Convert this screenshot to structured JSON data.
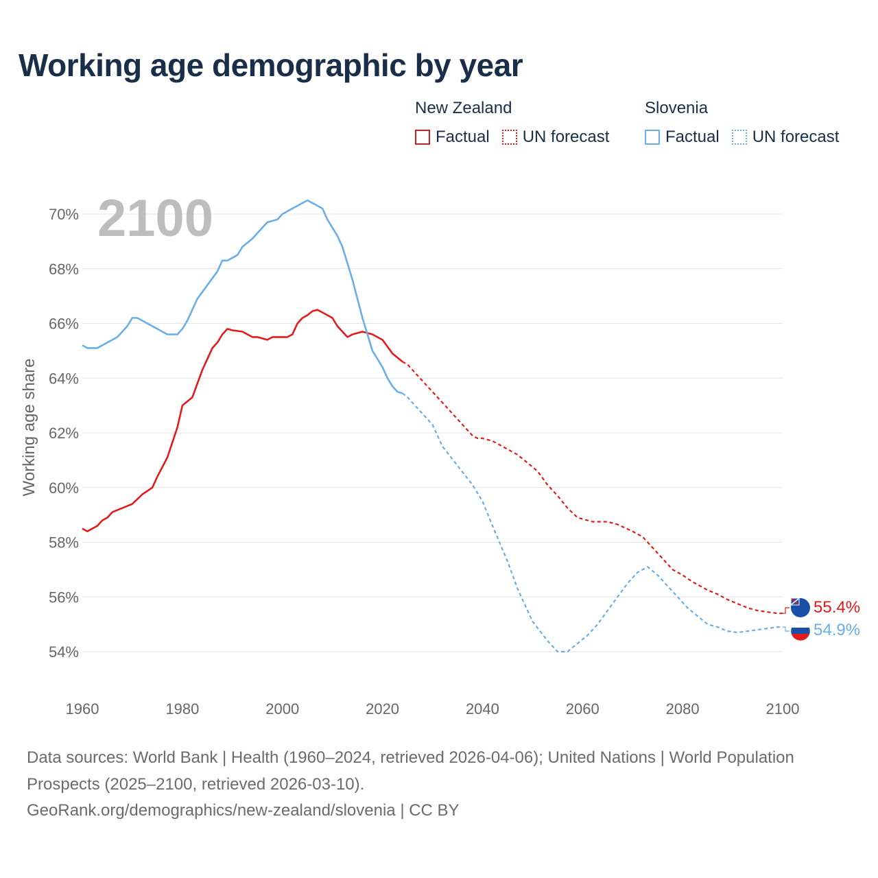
{
  "title": "Working age demographic by year",
  "year_display": "2100",
  "legend": {
    "groups": [
      {
        "country": "New Zealand",
        "factual_label": "Factual",
        "forecast_label": "UN forecast",
        "color": "#e31a1c"
      },
      {
        "country": "Slovenia",
        "factual_label": "Factual",
        "forecast_label": "UN forecast",
        "color": "#6aaee6"
      }
    ]
  },
  "footer": {
    "line1": "Data sources: World Bank | Health (1960–2024, retrieved 2026-04-06); United Nations | World Population Prospects (2025–2100, retrieved 2026-03-10).",
    "line2": "GeoRank.org/demographics/new-zealand/slovenia | CC BY"
  },
  "chart_data": {
    "type": "line",
    "title": "Working age demographic by year",
    "xlabel": "",
    "ylabel": "Working age share",
    "xlim": [
      1960,
      2100
    ],
    "ylim": [
      53,
      71
    ],
    "xticks": [
      1960,
      1980,
      2000,
      2020,
      2040,
      2060,
      2080,
      2100
    ],
    "xtick_labels": [
      "1960",
      "1980",
      "2000",
      "2020",
      "2040",
      "2060",
      "2080",
      "2100"
    ],
    "yticks": [
      54,
      56,
      58,
      60,
      62,
      64,
      66,
      68,
      70
    ],
    "ytick_labels": [
      "54%",
      "56%",
      "58%",
      "60%",
      "62%",
      "64%",
      "66%",
      "68%",
      "70%"
    ],
    "grid": true,
    "factual_end_year": 2024,
    "series": [
      {
        "name": "New Zealand",
        "color": "#e31a1c",
        "end_label": "55.4%",
        "x": [
          1960,
          1961,
          1962,
          1963,
          1964,
          1965,
          1966,
          1968,
          1970,
          1972,
          1974,
          1975,
          1977,
          1979,
          1980,
          1982,
          1984,
          1985,
          1986,
          1987,
          1988,
          1989,
          1990,
          1992,
          1994,
          1995,
          1997,
          1998,
          2000,
          2001,
          2002,
          2003,
          2004,
          2005,
          2006,
          2007,
          2008,
          2010,
          2011,
          2013,
          2014,
          2016,
          2017,
          2018,
          2020,
          2022,
          2024,
          2025,
          2027,
          2030,
          2032,
          2035,
          2038,
          2039,
          2040,
          2042,
          2043,
          2045,
          2047,
          2049,
          2051,
          2053,
          2055,
          2057,
          2059,
          2060,
          2062,
          2065,
          2067,
          2070,
          2072,
          2074,
          2076,
          2078,
          2080,
          2082,
          2085,
          2087,
          2089,
          2091,
          2093,
          2095,
          2097,
          2099,
          2100
        ],
        "values": [
          58.5,
          58.4,
          58.5,
          58.6,
          58.8,
          58.9,
          59.1,
          59.25,
          59.4,
          59.75,
          60.0,
          60.4,
          61.1,
          62.2,
          63.0,
          63.3,
          64.3,
          64.7,
          65.1,
          65.3,
          65.6,
          65.8,
          65.75,
          65.7,
          65.5,
          65.5,
          65.4,
          65.5,
          65.5,
          65.5,
          65.6,
          66.0,
          66.2,
          66.3,
          66.45,
          66.5,
          66.4,
          66.2,
          65.9,
          65.5,
          65.6,
          65.7,
          65.65,
          65.6,
          65.4,
          64.9,
          64.6,
          64.5,
          64.1,
          63.5,
          63.1,
          62.5,
          61.9,
          61.8,
          61.8,
          61.7,
          61.6,
          61.4,
          61.2,
          60.9,
          60.6,
          60.1,
          59.7,
          59.25,
          58.9,
          58.85,
          58.75,
          58.75,
          58.65,
          58.4,
          58.2,
          57.8,
          57.4,
          57.0,
          56.8,
          56.55,
          56.25,
          56.1,
          55.9,
          55.75,
          55.6,
          55.5,
          55.45,
          55.4,
          55.4
        ]
      },
      {
        "name": "Slovenia",
        "color": "#6aaee6",
        "end_label": "54.9%",
        "x": [
          1960,
          1961,
          1963,
          1965,
          1967,
          1969,
          1970,
          1971,
          1973,
          1975,
          1977,
          1979,
          1980,
          1981,
          1983,
          1985,
          1987,
          1988,
          1989,
          1990,
          1991,
          1992,
          1994,
          1996,
          1997,
          1999,
          2000,
          2002,
          2004,
          2005,
          2006,
          2007,
          2008,
          2009,
          2010,
          2011,
          2012,
          2014,
          2016,
          2018,
          2020,
          2021,
          2022,
          2023,
          2024,
          2025,
          2027,
          2030,
          2032,
          2035,
          2038,
          2040,
          2042,
          2045,
          2047,
          2050,
          2053,
          2055,
          2057,
          2059,
          2061,
          2063,
          2065,
          2067,
          2069,
          2071,
          2073,
          2075,
          2077,
          2079,
          2081,
          2083,
          2085,
          2087,
          2089,
          2091,
          2093,
          2095,
          2097,
          2099,
          2100
        ],
        "values": [
          65.2,
          65.1,
          65.1,
          65.3,
          65.5,
          65.9,
          66.2,
          66.2,
          66.0,
          65.8,
          65.6,
          65.6,
          65.8,
          66.1,
          66.9,
          67.4,
          67.9,
          68.3,
          68.3,
          68.4,
          68.5,
          68.8,
          69.1,
          69.5,
          69.7,
          69.8,
          70.0,
          70.2,
          70.4,
          70.5,
          70.4,
          70.3,
          70.2,
          69.8,
          69.5,
          69.2,
          68.8,
          67.6,
          66.2,
          65.0,
          64.4,
          64.0,
          63.7,
          63.5,
          63.45,
          63.3,
          62.9,
          62.3,
          61.5,
          60.8,
          60.1,
          59.5,
          58.6,
          57.3,
          56.3,
          55.1,
          54.4,
          54.0,
          54.0,
          54.3,
          54.6,
          55.0,
          55.5,
          56.0,
          56.5,
          56.9,
          57.1,
          56.8,
          56.4,
          56.0,
          55.6,
          55.3,
          55.0,
          54.9,
          54.75,
          54.7,
          54.75,
          54.8,
          54.85,
          54.9,
          54.9
        ]
      }
    ]
  }
}
